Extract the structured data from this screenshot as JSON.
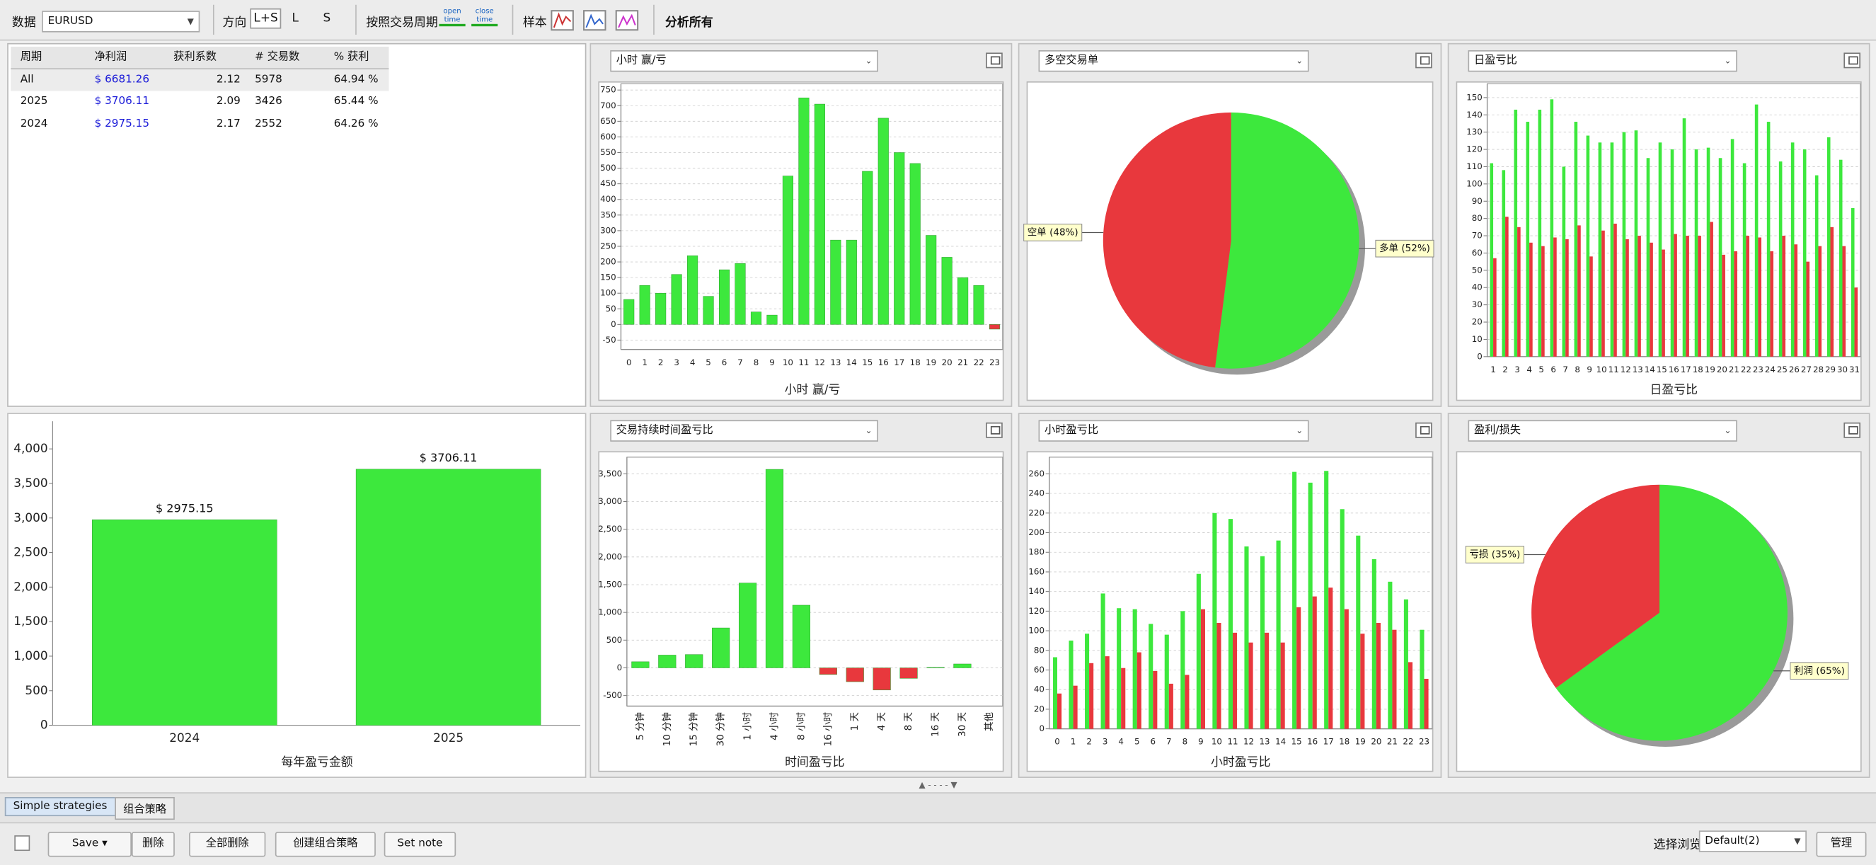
{
  "toolbar": {
    "data_label": "数据",
    "symbol": "EURUSD",
    "direction_label": "方向",
    "directions": [
      "L+S",
      "L",
      "S"
    ],
    "period_label": "按照交易周期",
    "period_buttons": [
      "open time",
      "close time"
    ],
    "sample_label": "样本",
    "analyze": "分析所有"
  },
  "table": {
    "headers": [
      "周期",
      "净利润",
      "获利系数",
      "# 交易数",
      "% 获利"
    ],
    "rows": [
      [
        "All",
        "$ 6681.26",
        "2.12",
        "5978",
        "64.94 %"
      ],
      [
        "2025",
        "$ 3706.11",
        "2.09",
        "3426",
        "65.44 %"
      ],
      [
        "2024",
        "$ 2975.15",
        "2.17",
        "2552",
        "64.26 %"
      ]
    ]
  },
  "chart_data": [
    {
      "type": "bar",
      "title": "小时 赢/亏",
      "xlabel": "小时 赢/亏",
      "categories": [
        "0",
        "1",
        "2",
        "3",
        "4",
        "5",
        "6",
        "7",
        "8",
        "9",
        "10",
        "11",
        "12",
        "13",
        "14",
        "15",
        "16",
        "17",
        "18",
        "19",
        "20",
        "21",
        "22",
        "23"
      ],
      "values": [
        80,
        125,
        100,
        160,
        220,
        90,
        175,
        195,
        40,
        30,
        475,
        725,
        705,
        270,
        270,
        490,
        660,
        550,
        515,
        285,
        215,
        150,
        125,
        -15
      ],
      "color": "#3de83d",
      "negative_color": "#e8383d",
      "ylim": [
        -80,
        770
      ],
      "yticks": [
        -50,
        0,
        50,
        100,
        150,
        200,
        250,
        300,
        350,
        400,
        450,
        500,
        550,
        600,
        650,
        700,
        750
      ],
      "grid": true
    },
    {
      "type": "pie",
      "title": "多空交易单",
      "values": [
        52,
        48
      ],
      "value_labels": [
        "多单 (52%)",
        "空单 (48%)"
      ],
      "colors": [
        "#3de83d",
        "#e8383d"
      ]
    },
    {
      "type": "bar",
      "title": "日盈亏比",
      "xlabel": "日盈亏比",
      "categories": [
        "1",
        "2",
        "3",
        "4",
        "5",
        "6",
        "7",
        "8",
        "9",
        "10",
        "11",
        "12",
        "13",
        "14",
        "15",
        "16",
        "17",
        "18",
        "19",
        "20",
        "21",
        "22",
        "23",
        "24",
        "25",
        "26",
        "27",
        "28",
        "29",
        "30",
        "31"
      ],
      "series": [
        {
          "color": "#3de83d",
          "values": [
            112,
            108,
            143,
            136,
            143,
            149,
            110,
            136,
            128,
            124,
            124,
            130,
            131,
            115,
            124,
            120,
            138,
            120,
            121,
            115,
            126,
            112,
            146,
            136,
            113,
            124,
            120,
            105,
            127,
            114,
            86
          ]
        },
        {
          "color": "#e8383d",
          "values": [
            57,
            81,
            75,
            66,
            64,
            69,
            68,
            76,
            58,
            73,
            77,
            68,
            70,
            66,
            62,
            71,
            70,
            70,
            78,
            59,
            61,
            70,
            69,
            61,
            70,
            65,
            55,
            64,
            75,
            64,
            40
          ]
        }
      ],
      "ylim": [
        0,
        158
      ],
      "yticks": [
        0,
        10,
        20,
        30,
        40,
        50,
        60,
        70,
        80,
        90,
        100,
        110,
        120,
        130,
        140,
        150
      ],
      "grid": true
    },
    {
      "type": "bar",
      "xlabel": "每年盈亏金额",
      "categories": [
        "2024",
        "2025"
      ],
      "values": [
        2975.15,
        3706.11
      ],
      "value_labels": [
        "$ 2975.15",
        "$ 3706.11"
      ],
      "color": "#3de83d",
      "ylim": [
        0,
        4400
      ],
      "yticks": [
        0,
        500,
        {
          "value": 1000,
          "label": "1,000"
        },
        {
          "value": 1500,
          "label": "1,500"
        },
        {
          "value": 2000,
          "label": "2,000"
        },
        {
          "value": 2500,
          "label": "2,500"
        },
        {
          "value": 3000,
          "label": "3,000"
        },
        {
          "value": 3500,
          "label": "3,500"
        },
        {
          "value": 4000,
          "label": "4,000"
        }
      ],
      "grid": false
    },
    {
      "type": "bar",
      "title": "交易持续时间盈亏比",
      "xlabel": "时间盈亏比",
      "categories": [
        "5 分钟",
        "10 分钟",
        "15 分钟",
        "30 分钟",
        "1 小时",
        "4 小时",
        "8 小时",
        "16 小时",
        "1 天",
        "4 天",
        "8 天",
        "16 天",
        "30 天",
        "其他"
      ],
      "values": [
        110,
        230,
        240,
        720,
        1530,
        3580,
        1130,
        -120,
        -250,
        -400,
        -190,
        10,
        70,
        0
      ],
      "color": "#3de83d",
      "negative_color": "#e8383d",
      "ylim": [
        -690,
        3800
      ],
      "yticks": [
        -500,
        0,
        500,
        {
          "value": 1000,
          "label": "1,000"
        },
        {
          "value": 1500,
          "label": "1,500"
        },
        {
          "value": 2000,
          "label": "2,000"
        },
        {
          "value": 2500,
          "label": "2,500"
        },
        {
          "value": 3000,
          "label": "3,000"
        },
        {
          "value": 3500,
          "label": "3,500"
        }
      ],
      "grid": true
    },
    {
      "type": "bar",
      "title": "小时盈亏比",
      "xlabel": "小时盈亏比",
      "categories": [
        "0",
        "1",
        "2",
        "3",
        "4",
        "5",
        "6",
        "7",
        "8",
        "9",
        "10",
        "11",
        "12",
        "13",
        "14",
        "15",
        "16",
        "17",
        "18",
        "19",
        "20",
        "21",
        "22",
        "23"
      ],
      "series": [
        {
          "color": "#3de83d",
          "values": [
            73,
            90,
            97,
            138,
            123,
            122,
            107,
            96,
            120,
            158,
            220,
            214,
            186,
            176,
            192,
            262,
            251,
            263,
            224,
            197,
            173,
            150,
            132,
            101
          ]
        },
        {
          "color": "#e8383d",
          "values": [
            36,
            44,
            67,
            74,
            62,
            78,
            59,
            46,
            55,
            122,
            108,
            98,
            88,
            98,
            88,
            124,
            135,
            144,
            122,
            97,
            108,
            101,
            68,
            51
          ]
        }
      ],
      "ylim": [
        0,
        277
      ],
      "yticks": [
        0,
        20,
        40,
        60,
        80,
        100,
        120,
        140,
        160,
        180,
        200,
        220,
        240,
        260
      ],
      "grid": true
    },
    {
      "type": "pie",
      "title": "盈利/损失",
      "values": [
        65,
        35
      ],
      "value_labels": [
        "利润 (65%)",
        "亏损 (35%)"
      ],
      "colors": [
        "#3de83d",
        "#e8383d"
      ]
    }
  ],
  "tabs": [
    "Simple strategies",
    "组合策略"
  ],
  "footer": {
    "buttons": [
      "Save",
      "删除",
      "全部删除",
      "创建组合策略",
      "Set note"
    ],
    "view_label": "选择浏览",
    "view_value": "Default(2)",
    "manage": "管理"
  }
}
